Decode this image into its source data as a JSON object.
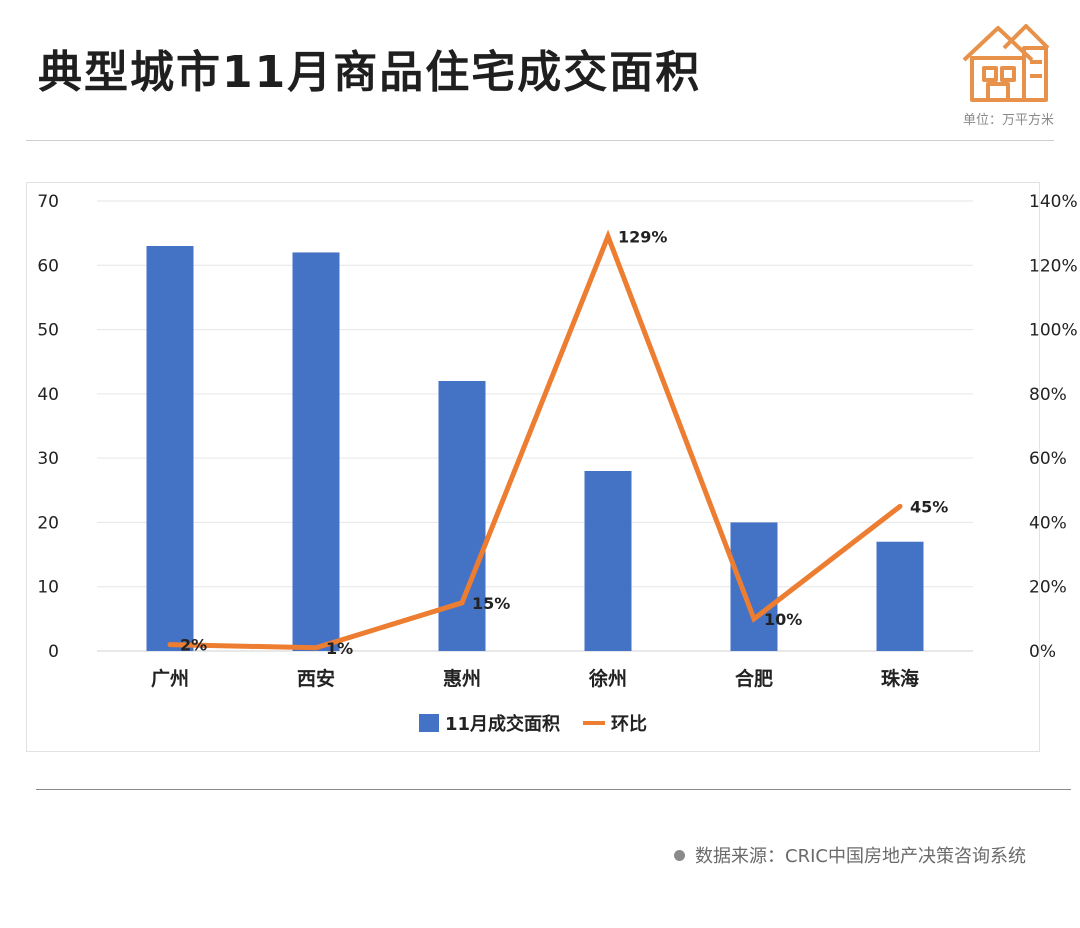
{
  "header": {
    "title": "典型城市11月商品住宅成交面积",
    "unit": "单位：万平方米"
  },
  "icons": {
    "logo": "house-icon",
    "source_marker": "dot-icon"
  },
  "colors": {
    "bar": "#4472C4",
    "line": "#ED7D31",
    "grid": "#e6e6e6"
  },
  "footer": {
    "source": "数据来源：CRIC中国房地产决策咨询系统"
  },
  "chart_data": {
    "type": "bar",
    "categories": [
      "广州",
      "西安",
      "惠州",
      "徐州",
      "合肥",
      "珠海"
    ],
    "series": [
      {
        "name": "11月成交面积",
        "type": "bar",
        "axis": "left",
        "values": [
          63,
          62,
          42,
          28,
          20,
          17
        ]
      },
      {
        "name": "环比",
        "type": "line",
        "axis": "right",
        "values": [
          2,
          1,
          15,
          129,
          10,
          45
        ],
        "labels": [
          "2%",
          "1%",
          "15%",
          "129%",
          "10%",
          "45%"
        ]
      }
    ],
    "ylim": [
      0,
      70
    ],
    "y_ticks": [
      "0",
      "10",
      "20",
      "30",
      "40",
      "50",
      "60",
      "70"
    ],
    "y2lim": [
      0,
      140
    ],
    "y2_ticks": [
      "0%",
      "20%",
      "40%",
      "60%",
      "80%",
      "100%",
      "120%",
      "140%"
    ],
    "grid": true,
    "legend": "bottom"
  }
}
